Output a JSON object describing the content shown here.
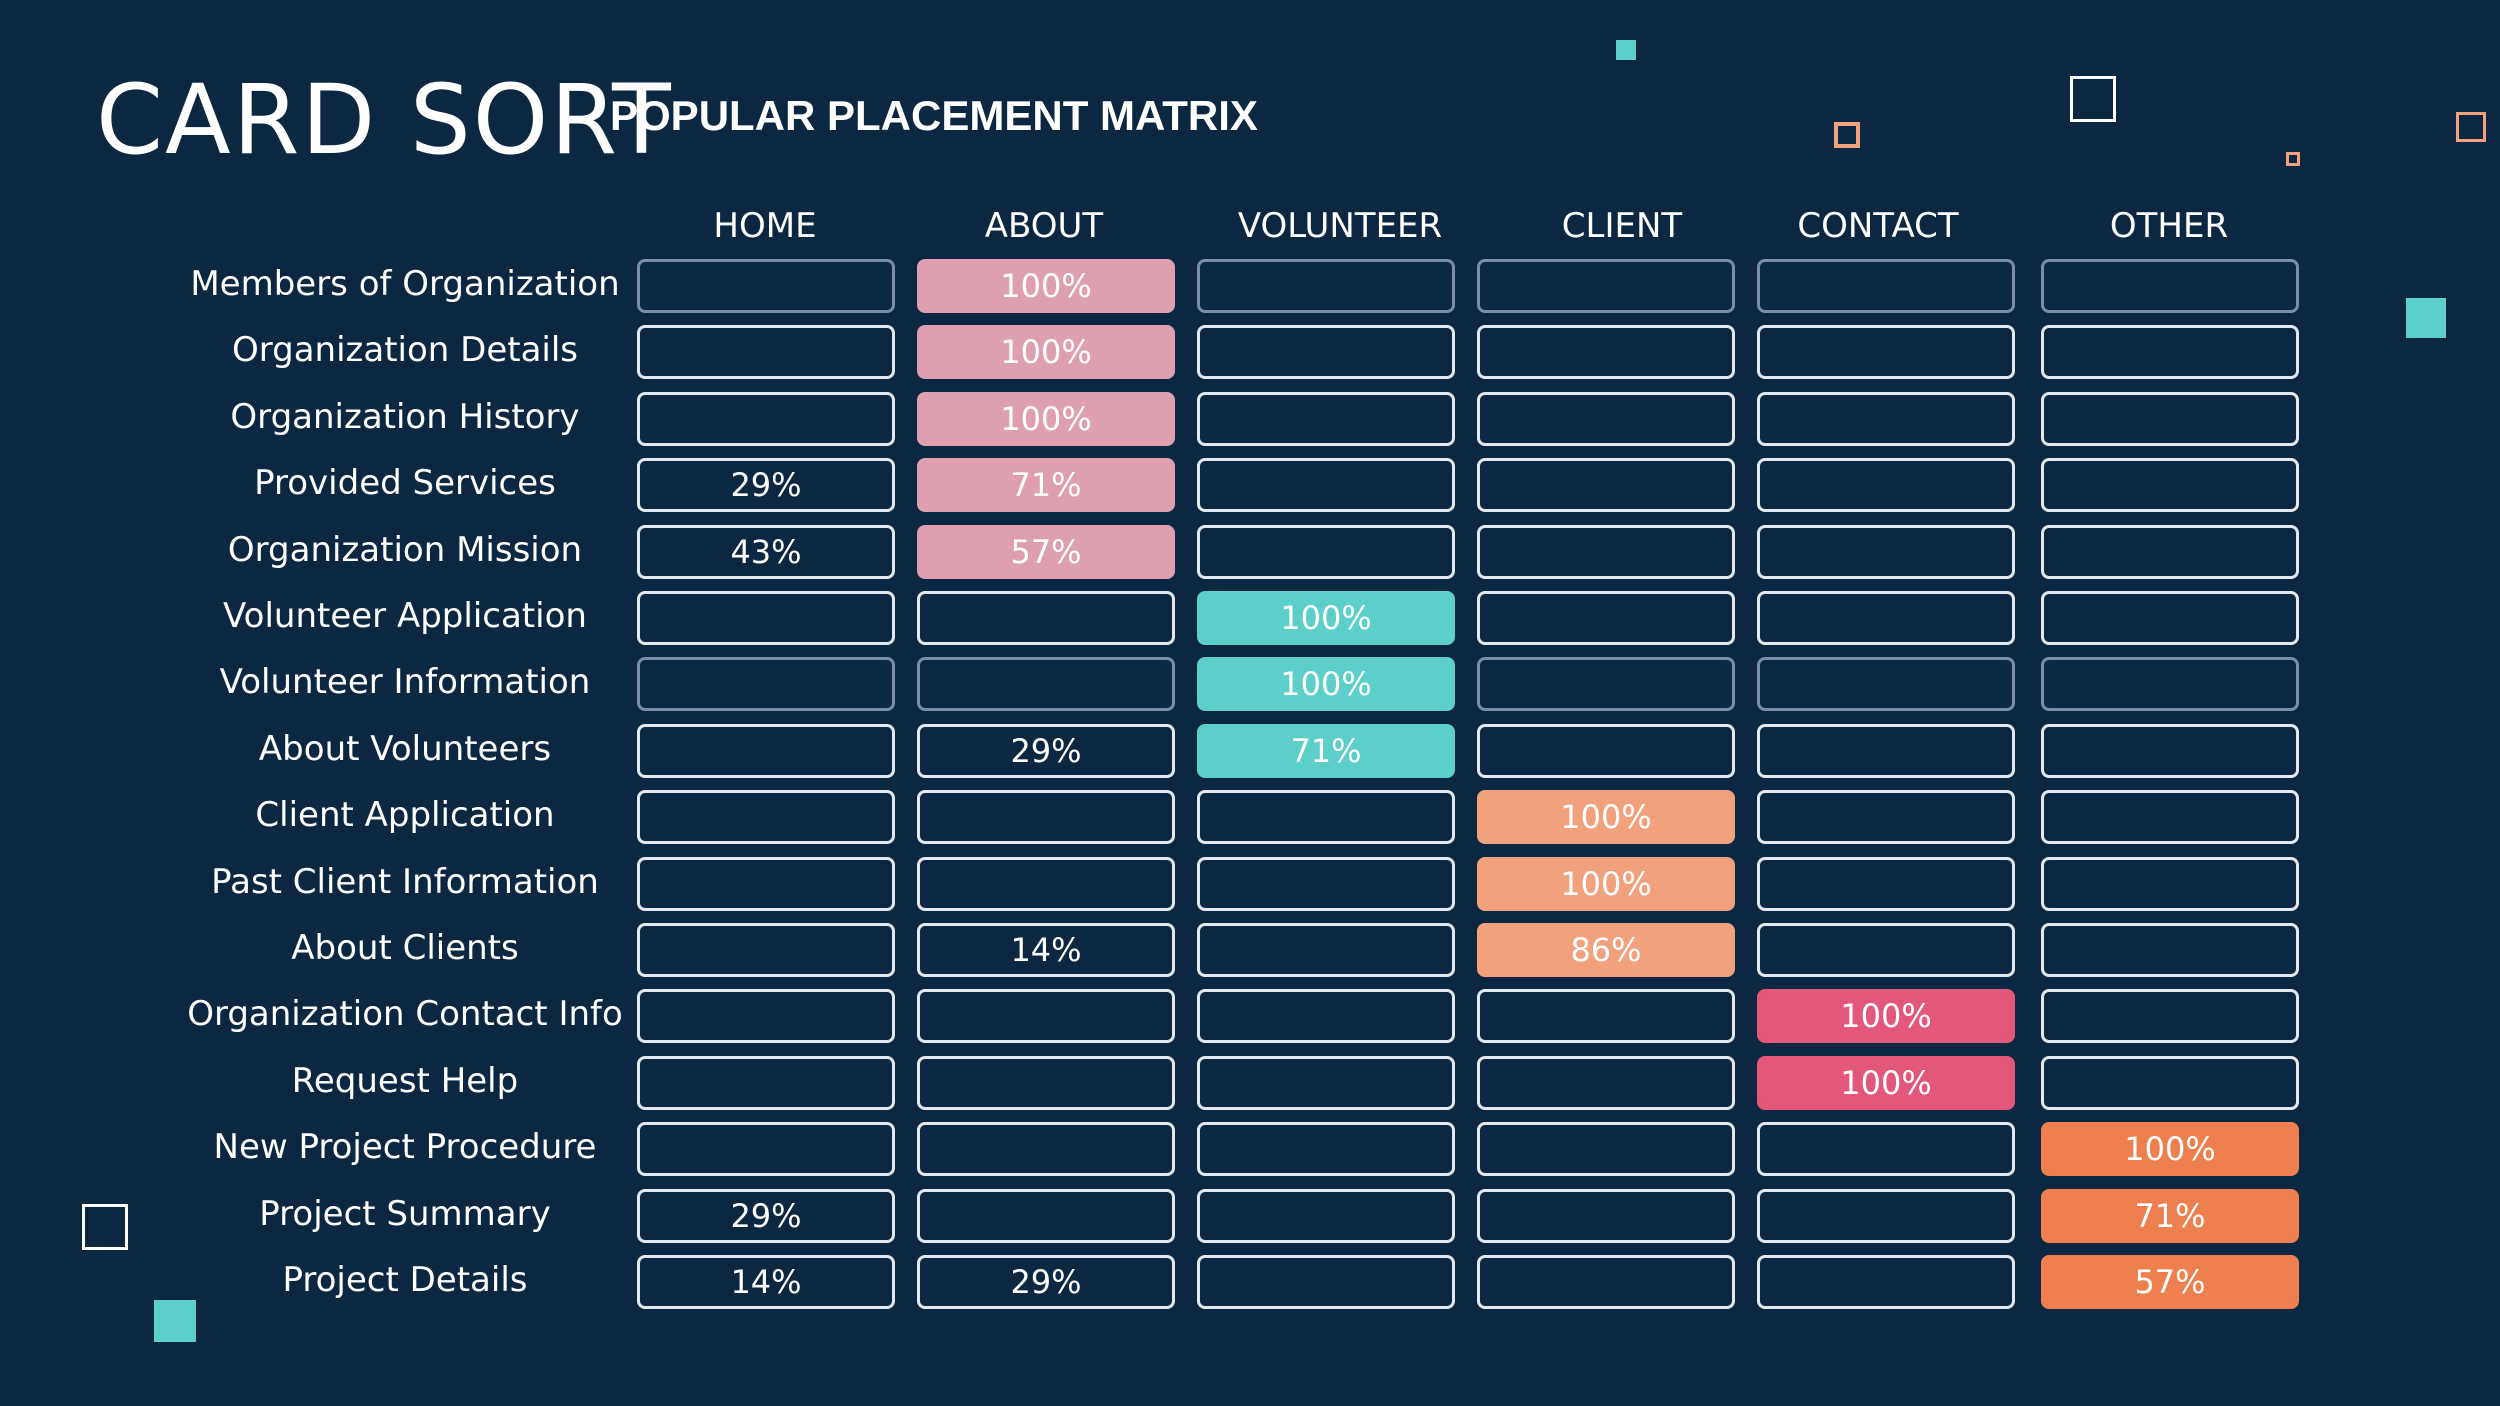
{
  "title": "CARD SORT",
  "subtitle": "POPULAR PLACEMENT MATRIX",
  "colors": {
    "background": "#0b2742",
    "about": "#dea0b0",
    "volunteer": "#5ccfca",
    "client": "#f2a17d",
    "contact": "#e2577a",
    "other": "#ee7f4f",
    "accent_teal": "#5ccfca",
    "accent_orange": "#f2a17d"
  },
  "chart_data": {
    "type": "table",
    "title": "POPULAR PLACEMENT MATRIX",
    "columns": [
      "HOME",
      "ABOUT",
      "VOLUNTEER",
      "CLIENT",
      "CONTACT",
      "OTHER"
    ],
    "rows": [
      {
        "label": "Members of Organization",
        "values": [
          "",
          "100%",
          "",
          "",
          "",
          ""
        ]
      },
      {
        "label": "Organization Details",
        "values": [
          "",
          "100%",
          "",
          "",
          "",
          ""
        ]
      },
      {
        "label": "Organization History",
        "values": [
          "",
          "100%",
          "",
          "",
          "",
          ""
        ]
      },
      {
        "label": "Provided Services",
        "values": [
          "29%",
          "71%",
          "",
          "",
          "",
          ""
        ]
      },
      {
        "label": "Organization Mission",
        "values": [
          "43%",
          "57%",
          "",
          "",
          "",
          ""
        ]
      },
      {
        "label": "Volunteer Application",
        "values": [
          "",
          "",
          "100%",
          "",
          "",
          ""
        ]
      },
      {
        "label": "Volunteer Information",
        "values": [
          "",
          "",
          "100%",
          "",
          "",
          ""
        ]
      },
      {
        "label": "About Volunteers",
        "values": [
          "",
          "29%",
          "71%",
          "",
          "",
          ""
        ]
      },
      {
        "label": "Client Application",
        "values": [
          "",
          "",
          "",
          "100%",
          "",
          ""
        ]
      },
      {
        "label": "Past Client Information",
        "values": [
          "",
          "",
          "",
          "100%",
          "",
          ""
        ]
      },
      {
        "label": "About Clients",
        "values": [
          "",
          "14%",
          "",
          "86%",
          "",
          ""
        ]
      },
      {
        "label": "Organization Contact Info",
        "values": [
          "",
          "",
          "",
          "",
          "100%",
          ""
        ]
      },
      {
        "label": "Request Help",
        "values": [
          "",
          "",
          "",
          "",
          "100%",
          ""
        ]
      },
      {
        "label": "New Project Procedure",
        "values": [
          "",
          "",
          "",
          "",
          "",
          "100%"
        ]
      },
      {
        "label": "Project Summary",
        "values": [
          "29%",
          "",
          "",
          "",
          "",
          "71%"
        ]
      },
      {
        "label": "Project Details",
        "values": [
          "14%",
          "29%",
          "",
          "",
          "",
          "57%"
        ]
      }
    ],
    "highlighted": [
      [
        false,
        true,
        false,
        false,
        false,
        false
      ],
      [
        false,
        true,
        false,
        false,
        false,
        false
      ],
      [
        false,
        true,
        false,
        false,
        false,
        false
      ],
      [
        false,
        true,
        false,
        false,
        false,
        false
      ],
      [
        false,
        true,
        false,
        false,
        false,
        false
      ],
      [
        false,
        false,
        true,
        false,
        false,
        false
      ],
      [
        false,
        false,
        true,
        false,
        false,
        false
      ],
      [
        false,
        false,
        true,
        false,
        false,
        false
      ],
      [
        false,
        false,
        false,
        true,
        false,
        false
      ],
      [
        false,
        false,
        false,
        true,
        false,
        false
      ],
      [
        false,
        false,
        false,
        true,
        false,
        false
      ],
      [
        false,
        false,
        false,
        false,
        true,
        false
      ],
      [
        false,
        false,
        false,
        false,
        true,
        false
      ],
      [
        false,
        false,
        false,
        false,
        false,
        true
      ],
      [
        false,
        false,
        false,
        false,
        false,
        true
      ],
      [
        false,
        false,
        false,
        false,
        false,
        true
      ]
    ],
    "column_colors": [
      "#5ccfca",
      "#dea0b0",
      "#5ccfca",
      "#f2a17d",
      "#e2577a",
      "#ee7f4f"
    ]
  }
}
